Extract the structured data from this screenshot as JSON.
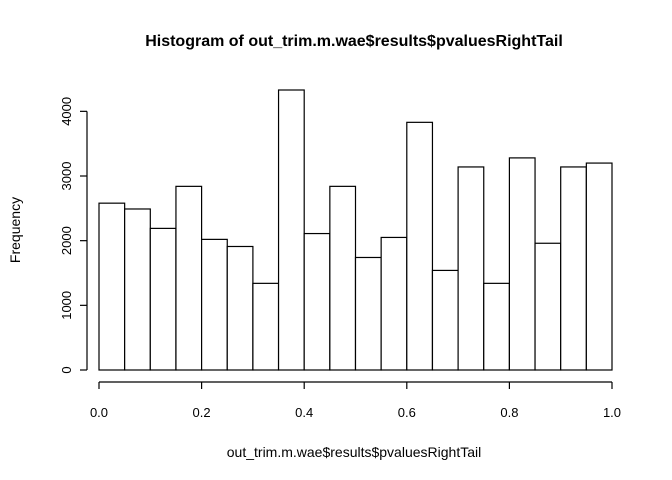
{
  "chart_data": {
    "type": "bar",
    "title": "Histogram of out_trim.m.wae$results$pvaluesRightTail",
    "xlabel": "out_trim.m.wae$results$pvaluesRightTail",
    "ylabel": "Frequency",
    "bin_edges": [
      0.0,
      0.05,
      0.1,
      0.15,
      0.2,
      0.25,
      0.3,
      0.35,
      0.4,
      0.45,
      0.5,
      0.55,
      0.6,
      0.65,
      0.7,
      0.75,
      0.8,
      0.85,
      0.9,
      0.95,
      1.0
    ],
    "values": [
      2580,
      2490,
      2190,
      2840,
      2020,
      1910,
      1340,
      4330,
      2110,
      2840,
      1740,
      2050,
      3830,
      1540,
      3140,
      1340,
      3280,
      1960,
      3140,
      3200
    ],
    "xlim": [
      0,
      1
    ],
    "ylim": [
      0,
      4330
    ],
    "x_ticks": [
      0.0,
      0.2,
      0.4,
      0.6,
      0.8,
      1.0
    ],
    "x_tick_labels": [
      "0.0",
      "0.2",
      "0.4",
      "0.6",
      "0.8",
      "1.0"
    ],
    "y_ticks": [
      0,
      1000,
      2000,
      3000,
      4000
    ],
    "y_tick_labels": [
      "0",
      "1000",
      "2000",
      "3000",
      "4000"
    ],
    "grid": false,
    "bar_fill": "#ffffff",
    "bar_stroke": "#000000"
  }
}
